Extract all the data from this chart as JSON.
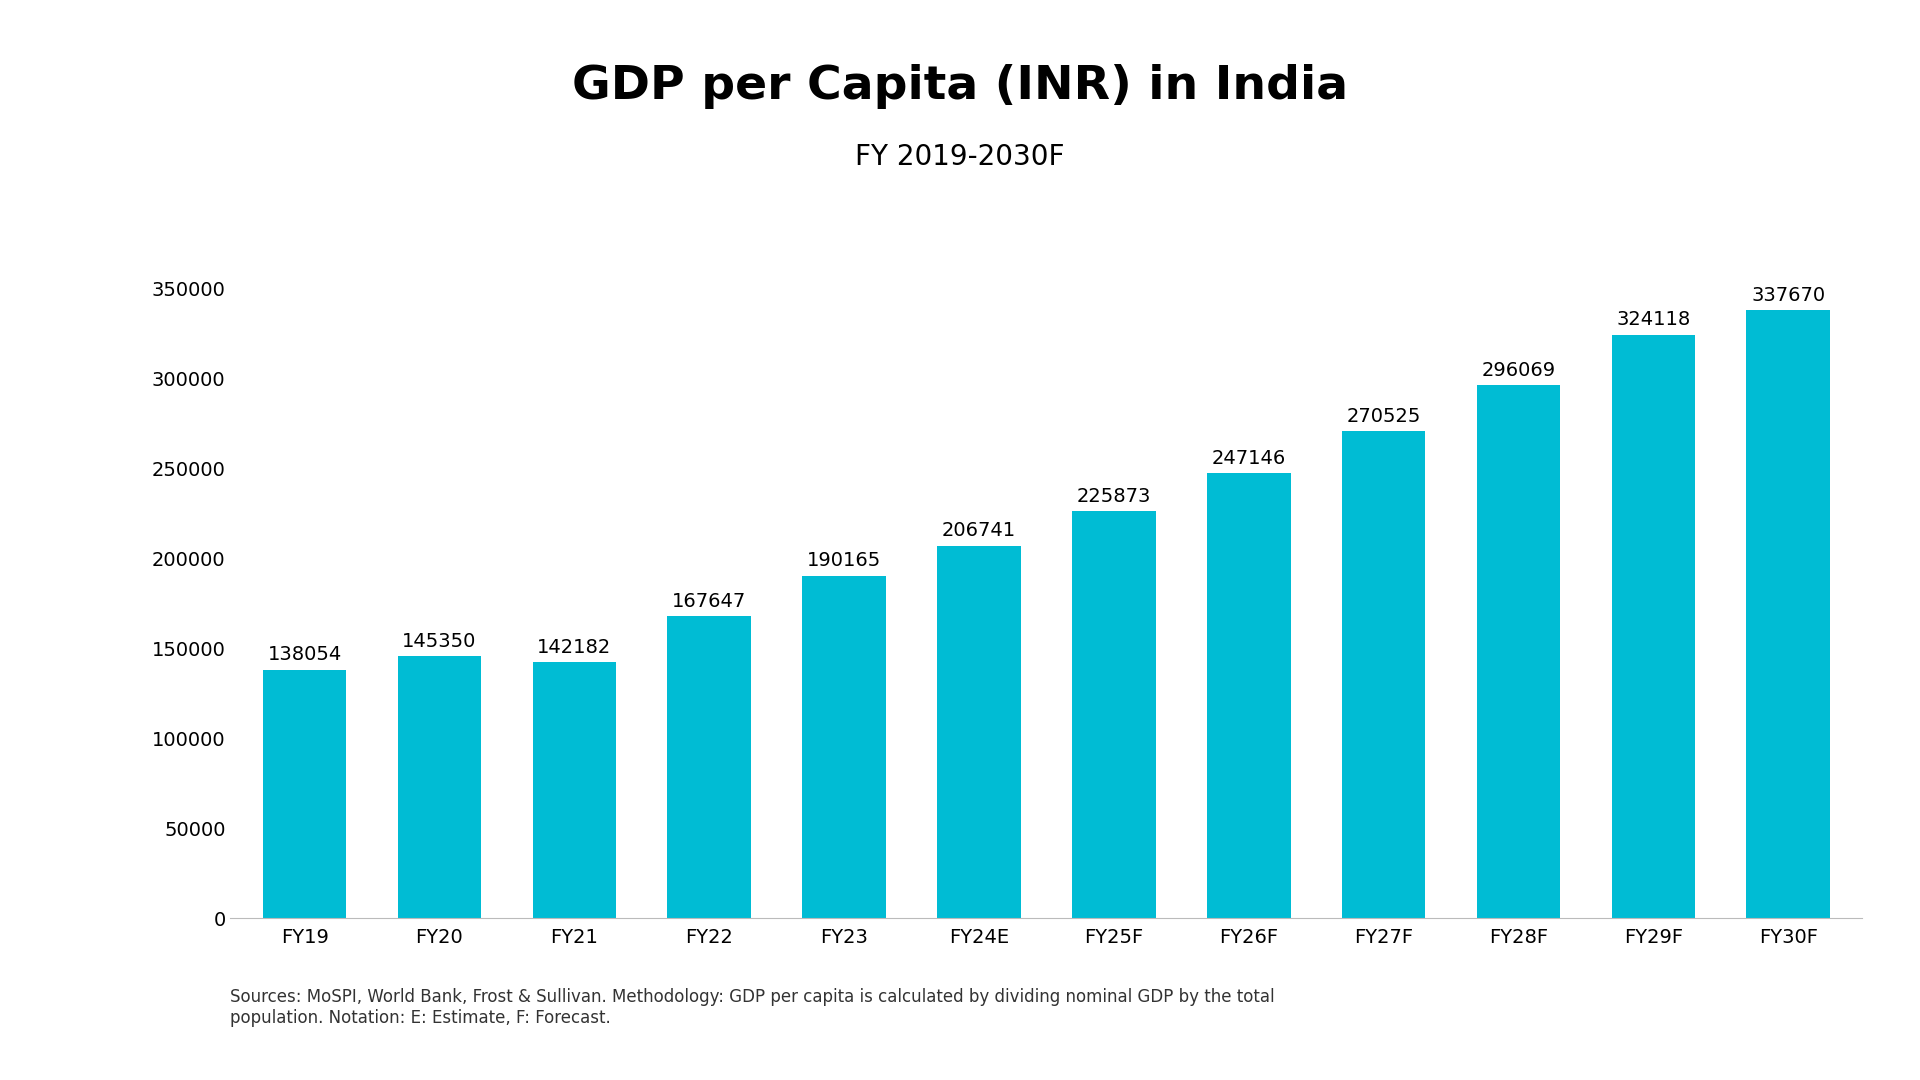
{
  "title": "GDP per Capita (INR) in India",
  "subtitle": "FY 2019-2030F",
  "categories": [
    "FY19",
    "FY20",
    "FY21",
    "FY22",
    "FY23",
    "FY24E",
    "FY25F",
    "FY26F",
    "FY27F",
    "FY28F",
    "FY29F",
    "FY30F"
  ],
  "values": [
    138054,
    145350,
    142182,
    167647,
    190165,
    206741,
    225873,
    247146,
    270525,
    296069,
    324118,
    337670
  ],
  "bar_color": "#00BCD4",
  "background_color": "#FFFFFF",
  "title_fontsize": 34,
  "subtitle_fontsize": 20,
  "label_fontsize": 14,
  "tick_fontsize": 14,
  "footnote": "Sources: MoSPI, World Bank, Frost & Sullivan. Methodology: GDP per capita is calculated by dividing nominal GDP by the total\npopulation. Notation: E: Estimate, F: Forecast.",
  "footnote_fontsize": 12,
  "ylim": [
    0,
    390000
  ],
  "yticks": [
    0,
    50000,
    100000,
    150000,
    200000,
    250000,
    300000,
    350000
  ]
}
